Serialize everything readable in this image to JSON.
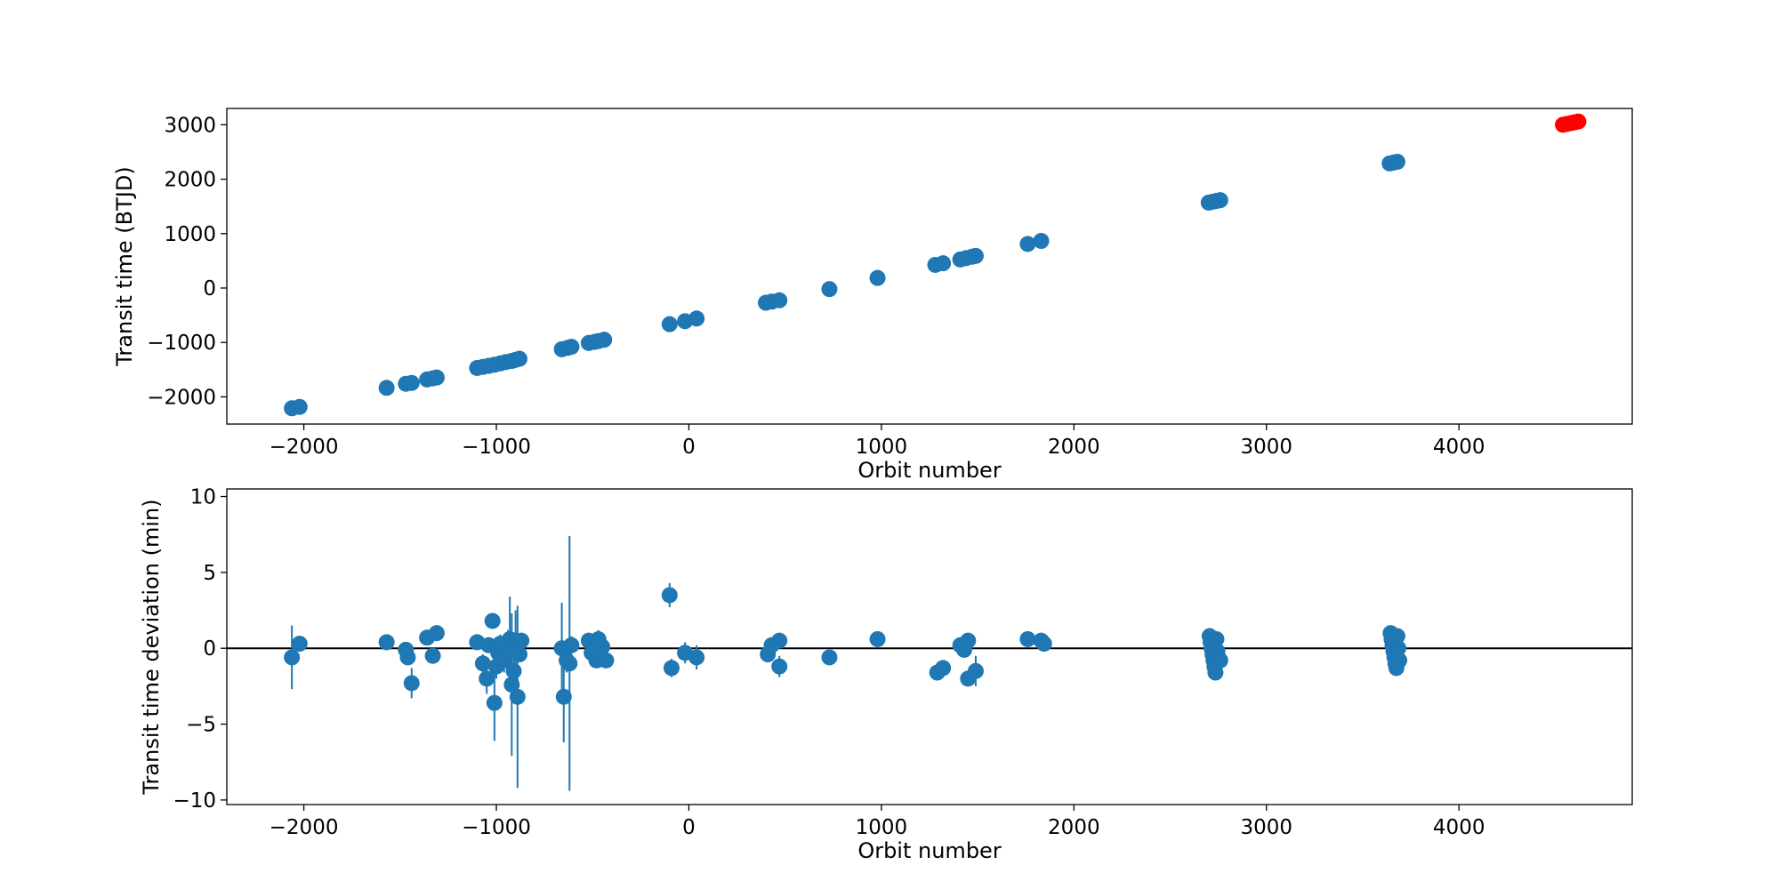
{
  "chart_data": [
    {
      "type": "scatter",
      "xlabel": "Orbit number",
      "ylabel": "Transit time (BTJD)",
      "xlim": [
        -2400,
        4900
      ],
      "ylim": [
        -2500,
        3300
      ],
      "xticks": [
        -2000,
        -1000,
        0,
        1000,
        2000,
        3000,
        4000
      ],
      "yticks": [
        -2000,
        -1000,
        0,
        1000,
        2000,
        3000
      ],
      "grid": false,
      "series": [
        {
          "color": "#1f77b4",
          "points": [
            [
              -2062,
              -2210
            ],
            [
              -2022,
              -2185
            ],
            [
              -1570,
              -1835
            ],
            [
              -1470,
              -1760
            ],
            [
              -1440,
              -1745
            ],
            [
              -1360,
              -1680
            ],
            [
              -1330,
              -1660
            ],
            [
              -1310,
              -1645
            ],
            [
              -1100,
              -1470
            ],
            [
              -1070,
              -1450
            ],
            [
              -1040,
              -1430
            ],
            [
              -1010,
              -1410
            ],
            [
              -980,
              -1385
            ],
            [
              -950,
              -1360
            ],
            [
              -920,
              -1340
            ],
            [
              -900,
              -1320
            ],
            [
              -880,
              -1300
            ],
            [
              -660,
              -1125
            ],
            [
              -630,
              -1100
            ],
            [
              -610,
              -1080
            ],
            [
              -520,
              -1010
            ],
            [
              -490,
              -990
            ],
            [
              -470,
              -975
            ],
            [
              -440,
              -950
            ],
            [
              -100,
              -665
            ],
            [
              -20,
              -610
            ],
            [
              40,
              -560
            ],
            [
              400,
              -270
            ],
            [
              430,
              -250
            ],
            [
              470,
              -225
            ],
            [
              730,
              -20
            ],
            [
              980,
              185
            ],
            [
              1280,
              425
            ],
            [
              1320,
              455
            ],
            [
              1410,
              525
            ],
            [
              1440,
              550
            ],
            [
              1470,
              575
            ],
            [
              1490,
              590
            ],
            [
              1760,
              810
            ],
            [
              1830,
              865
            ],
            [
              2700,
              1570
            ],
            [
              2720,
              1585
            ],
            [
              2740,
              1600
            ],
            [
              2760,
              1615
            ],
            [
              3640,
              2290
            ],
            [
              3660,
              2305
            ],
            [
              3680,
              2320
            ]
          ]
        },
        {
          "color": "#ff0000",
          "points": [
            [
              4540,
              3000
            ],
            [
              4560,
              3015
            ],
            [
              4580,
              3030
            ],
            [
              4600,
              3045
            ],
            [
              4620,
              3060
            ]
          ]
        }
      ]
    },
    {
      "type": "scatter",
      "xlabel": "Orbit number",
      "ylabel": "Transit time deviation (min)",
      "xlim": [
        -2400,
        4900
      ],
      "ylim": [
        -10.3,
        10.5
      ],
      "xticks": [
        -2000,
        -1000,
        0,
        1000,
        2000,
        3000,
        4000
      ],
      "yticks": [
        -10,
        -5,
        0,
        5,
        10
      ],
      "grid": false,
      "reference_line": 0,
      "series": [
        {
          "color": "#1f77b4",
          "points": [
            {
              "x": -2062,
              "y": -0.6,
              "err": 2.1
            },
            {
              "x": -2022,
              "y": 0.3,
              "err": 0.4
            },
            {
              "x": -1570,
              "y": 0.4,
              "err": 0.4
            },
            {
              "x": -1470,
              "y": -0.1,
              "err": 0.5
            },
            {
              "x": -1460,
              "y": -0.6,
              "err": 0.5
            },
            {
              "x": -1440,
              "y": -2.3,
              "err": 1.0
            },
            {
              "x": -1360,
              "y": 0.7,
              "err": 0.5
            },
            {
              "x": -1330,
              "y": -0.5,
              "err": 0.5
            },
            {
              "x": -1310,
              "y": 1.0,
              "err": 0.5
            },
            {
              "x": -1100,
              "y": 0.4,
              "err": 0.4
            },
            {
              "x": -1070,
              "y": -1.0,
              "err": 0.6
            },
            {
              "x": -1050,
              "y": -2.0,
              "err": 1.0
            },
            {
              "x": -1040,
              "y": 0.2,
              "err": 0.5
            },
            {
              "x": -1020,
              "y": 1.8,
              "err": 0.5
            },
            {
              "x": -1010,
              "y": -3.6,
              "err": 2.5
            },
            {
              "x": -1000,
              "y": -1.2,
              "err": 0.8
            },
            {
              "x": -990,
              "y": -0.3,
              "err": 0.6
            },
            {
              "x": -980,
              "y": 0.3,
              "err": 0.6
            },
            {
              "x": -960,
              "y": -0.8,
              "err": 0.8
            },
            {
              "x": -940,
              "y": 0.0,
              "err": 1.2
            },
            {
              "x": -930,
              "y": 0.6,
              "err": 2.8
            },
            {
              "x": -920,
              "y": -2.4,
              "err": 4.7
            },
            {
              "x": -910,
              "y": -1.5,
              "err": 1.5
            },
            {
              "x": -900,
              "y": 0.5,
              "err": 2.0
            },
            {
              "x": -890,
              "y": -3.2,
              "err": 6.0
            },
            {
              "x": -880,
              "y": -0.4,
              "err": 0.5
            },
            {
              "x": -870,
              "y": 0.5,
              "err": 0.5
            },
            {
              "x": -660,
              "y": 0.0,
              "err": 3.0
            },
            {
              "x": -650,
              "y": -3.2,
              "err": 3.0
            },
            {
              "x": -635,
              "y": -0.8,
              "err": 0.8
            },
            {
              "x": -620,
              "y": -1.0,
              "err": 8.4
            },
            {
              "x": -610,
              "y": 0.2,
              "err": 0.6
            },
            {
              "x": -520,
              "y": 0.5,
              "err": 0.5
            },
            {
              "x": -505,
              "y": -0.3,
              "err": 0.5
            },
            {
              "x": -490,
              "y": 0.2,
              "err": 0.5
            },
            {
              "x": -480,
              "y": -0.8,
              "err": 0.5
            },
            {
              "x": -470,
              "y": 0.6,
              "err": 0.6
            },
            {
              "x": -450,
              "y": 0.1,
              "err": 0.5
            },
            {
              "x": -430,
              "y": -0.8,
              "err": 0.5
            },
            {
              "x": -100,
              "y": 3.5,
              "err": 0.8
            },
            {
              "x": -90,
              "y": -1.3,
              "err": 0.6
            },
            {
              "x": -20,
              "y": -0.3,
              "err": 0.7
            },
            {
              "x": 40,
              "y": -0.6,
              "err": 0.8
            },
            {
              "x": 410,
              "y": -0.4,
              "err": 0.5
            },
            {
              "x": 430,
              "y": 0.2,
              "err": 0.5
            },
            {
              "x": 470,
              "y": 0.5,
              "err": 0.5
            },
            {
              "x": 470,
              "y": -1.2,
              "err": 0.7
            },
            {
              "x": 730,
              "y": -0.6,
              "err": 0.4
            },
            {
              "x": 980,
              "y": 0.6,
              "err": 0.4
            },
            {
              "x": 1290,
              "y": -1.6,
              "err": 0.5
            },
            {
              "x": 1320,
              "y": -1.3,
              "err": 0.5
            },
            {
              "x": 1410,
              "y": 0.2,
              "err": 0.4
            },
            {
              "x": 1430,
              "y": -0.1,
              "err": 0.4
            },
            {
              "x": 1450,
              "y": 0.5,
              "err": 0.5
            },
            {
              "x": 1450,
              "y": -2.0,
              "err": 0.5
            },
            {
              "x": 1490,
              "y": -1.5,
              "err": 1.0
            },
            {
              "x": 1760,
              "y": 0.6,
              "err": 0.4
            },
            {
              "x": 1830,
              "y": 0.5,
              "err": 0.4
            },
            {
              "x": 1845,
              "y": 0.3,
              "err": 0.4
            },
            {
              "x": 2705,
              "y": 0.8,
              "err": 0.5
            },
            {
              "x": 2710,
              "y": 0.4,
              "err": 0.5
            },
            {
              "x": 2715,
              "y": 0.0,
              "err": 0.5
            },
            {
              "x": 2720,
              "y": -0.4,
              "err": 0.5
            },
            {
              "x": 2725,
              "y": -0.8,
              "err": 0.5
            },
            {
              "x": 2730,
              "y": -1.2,
              "err": 0.5
            },
            {
              "x": 2735,
              "y": -1.6,
              "err": 0.5
            },
            {
              "x": 2740,
              "y": 0.6,
              "err": 0.5
            },
            {
              "x": 2745,
              "y": -0.2,
              "err": 0.5
            },
            {
              "x": 2750,
              "y": -0.6,
              "err": 0.5
            },
            {
              "x": 2760,
              "y": -0.8,
              "err": 0.5
            },
            {
              "x": 3645,
              "y": 1.0,
              "err": 0.5
            },
            {
              "x": 3650,
              "y": 0.6,
              "err": 0.5
            },
            {
              "x": 3655,
              "y": 0.2,
              "err": 0.5
            },
            {
              "x": 3660,
              "y": -0.2,
              "err": 0.5
            },
            {
              "x": 3665,
              "y": -0.6,
              "err": 0.5
            },
            {
              "x": 3670,
              "y": -1.0,
              "err": 0.5
            },
            {
              "x": 3675,
              "y": -1.3,
              "err": 0.5
            },
            {
              "x": 3680,
              "y": 0.8,
              "err": 0.5
            },
            {
              "x": 3685,
              "y": 0.0,
              "err": 0.5
            },
            {
              "x": 3690,
              "y": -0.8,
              "err": 0.5
            }
          ]
        }
      ]
    }
  ]
}
